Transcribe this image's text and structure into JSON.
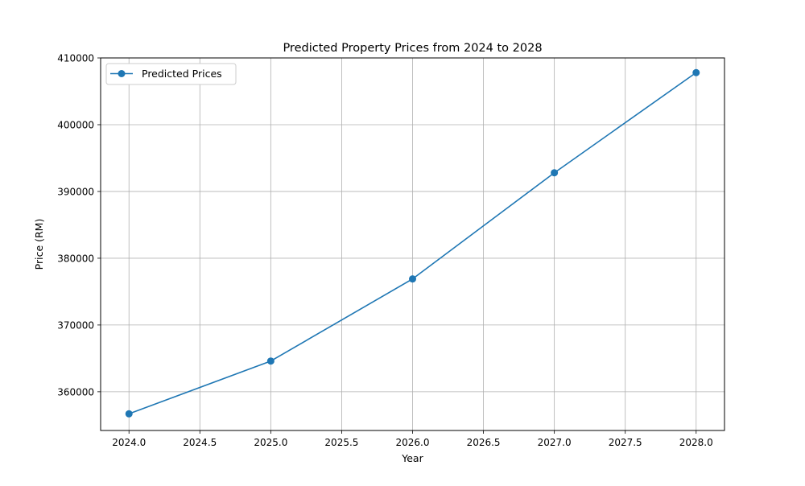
{
  "chart_data": {
    "type": "line",
    "title": "Predicted Property Prices from 2024 to 2028",
    "xlabel": "Year",
    "ylabel": "Price (RM)",
    "xlim": [
      2023.8,
      2028.2
    ],
    "ylim": [
      354200,
      410000
    ],
    "x_ticks": [
      2024.0,
      2024.5,
      2025.0,
      2025.5,
      2026.0,
      2026.5,
      2027.0,
      2027.5,
      2028.0
    ],
    "x_tick_labels": [
      "2024.0",
      "2024.5",
      "2025.0",
      "2025.5",
      "2026.0",
      "2026.5",
      "2027.0",
      "2027.5",
      "2028.0"
    ],
    "y_ticks": [
      360000,
      370000,
      380000,
      390000,
      400000,
      410000
    ],
    "y_tick_labels": [
      "360000",
      "370000",
      "380000",
      "390000",
      "400000",
      "410000"
    ],
    "grid": true,
    "legend_position": "top-left",
    "series": [
      {
        "name": "Predicted Prices",
        "color": "#1f77b4",
        "marker": "circle",
        "x": [
          2024,
          2025,
          2026,
          2027,
          2028
        ],
        "values": [
          356700,
          364600,
          376900,
          392800,
          407800
        ]
      }
    ]
  }
}
